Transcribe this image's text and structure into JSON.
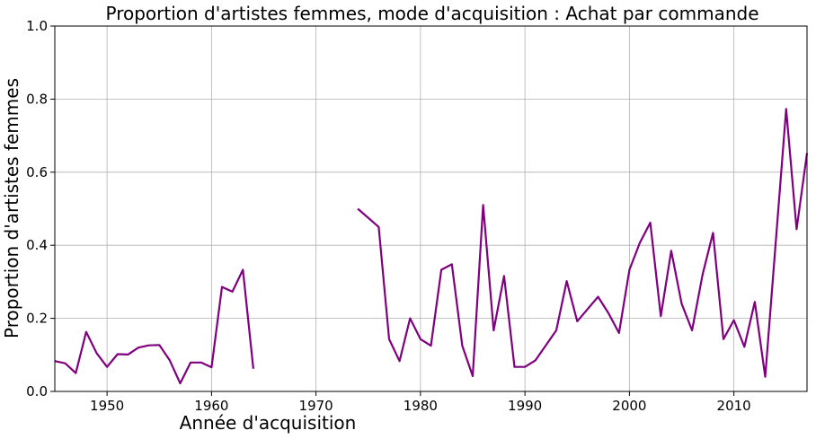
{
  "chart_data": {
    "type": "line",
    "title": "Proportion d'artistes femmes, mode d'acquisition : Achat par commande",
    "xlabel": "Année d'acquisition",
    "ylabel": "Proportion d'artistes femmes",
    "xlim": [
      1945,
      2017
    ],
    "ylim": [
      0,
      1
    ],
    "xticks": [
      1950,
      1960,
      1970,
      1980,
      1990,
      2000,
      2010
    ],
    "xtick_labels": [
      "1950",
      "1960",
      "1970",
      "1980",
      "1990",
      "2000",
      "2010"
    ],
    "yticks": [
      0,
      0.2,
      0.4,
      0.6,
      0.8,
      1.0
    ],
    "ytick_labels": [
      "0.0",
      "0.2",
      "0.4",
      "0.6",
      "0.8",
      "1.0"
    ],
    "grid": true,
    "color": "#800080",
    "series": [
      {
        "segments": [
          [
            [
              1945,
              0.083
            ],
            [
              1946,
              0.077
            ],
            [
              1947,
              0.05
            ],
            [
              1948,
              0.163
            ],
            [
              1949,
              0.105
            ],
            [
              1950,
              0.067
            ],
            [
              1951,
              0.102
            ],
            [
              1952,
              0.101
            ],
            [
              1953,
              0.12
            ],
            [
              1954,
              0.126
            ],
            [
              1955,
              0.127
            ],
            [
              1956,
              0.085
            ],
            [
              1957,
              0.022
            ],
            [
              1958,
              0.079
            ],
            [
              1959,
              0.079
            ],
            [
              1960,
              0.066
            ],
            [
              1961,
              0.286
            ],
            [
              1962,
              0.273
            ],
            [
              1963,
              0.333
            ],
            [
              1964,
              0.062
            ]
          ],
          [
            [
              1974,
              0.5
            ],
            [
              1976,
              0.45
            ],
            [
              1977,
              0.143
            ],
            [
              1978,
              0.083
            ],
            [
              1979,
              0.2
            ],
            [
              1980,
              0.143
            ],
            [
              1981,
              0.125
            ],
            [
              1982,
              0.333
            ],
            [
              1983,
              0.348
            ],
            [
              1984,
              0.125
            ],
            [
              1985,
              0.042
            ],
            [
              1986,
              0.51
            ],
            [
              1987,
              0.167
            ],
            [
              1988,
              0.316
            ],
            [
              1989,
              0.067
            ],
            [
              1990,
              0.067
            ],
            [
              1991,
              0.085
            ],
            [
              1993,
              0.167
            ],
            [
              1994,
              0.302
            ],
            [
              1995,
              0.192
            ],
            [
              1997,
              0.259
            ],
            [
              1998,
              0.214
            ],
            [
              1999,
              0.16
            ],
            [
              2000,
              0.333
            ],
            [
              2001,
              0.407
            ],
            [
              2002,
              0.462
            ],
            [
              2003,
              0.206
            ],
            [
              2004,
              0.385
            ],
            [
              2005,
              0.24
            ],
            [
              2006,
              0.167
            ],
            [
              2007,
              0.32
            ],
            [
              2008,
              0.434
            ],
            [
              2009,
              0.143
            ],
            [
              2010,
              0.195
            ],
            [
              2011,
              0.122
            ],
            [
              2012,
              0.245
            ],
            [
              2013,
              0.04
            ],
            [
              2015,
              0.773
            ],
            [
              2016,
              0.444
            ],
            [
              2017,
              0.652
            ]
          ]
        ]
      }
    ]
  }
}
